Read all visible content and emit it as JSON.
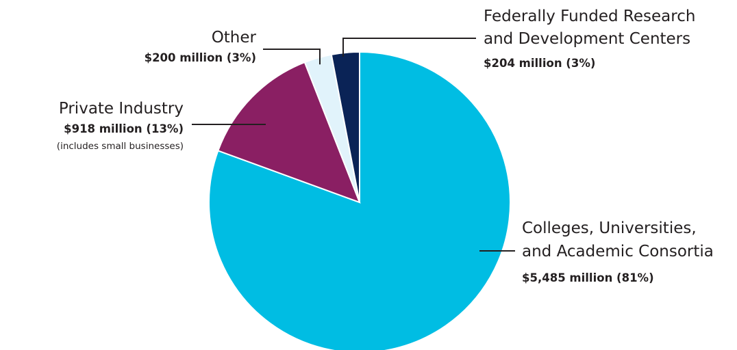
{
  "chart_data": {
    "type": "pie",
    "title": "",
    "start_angle_deg": 0,
    "direction": "clockwise",
    "slices": [
      {
        "key": "colleges",
        "label_lines": [
          "Colleges, Universities,",
          "and Academic Consortia"
        ],
        "value_label": "$5,485 million (81%)",
        "value": 5485,
        "percent": 81,
        "color": "#00bde3"
      },
      {
        "key": "private",
        "label_lines": [
          "Private Industry"
        ],
        "value_label": "$918 million (13%)",
        "note": "(includes small businesses)",
        "value": 918,
        "percent": 13,
        "color": "#8a1f63"
      },
      {
        "key": "other",
        "label_lines": [
          "Other"
        ],
        "value_label": "$200 million (3%)",
        "value": 200,
        "percent": 3,
        "color": "#e1f3fb"
      },
      {
        "key": "ffrdc",
        "label_lines": [
          "Federally Funded Research",
          "and Development Centers"
        ],
        "value_label": "$204 million (3%)",
        "value": 204,
        "percent": 3,
        "color": "#0a2356"
      }
    ]
  }
}
